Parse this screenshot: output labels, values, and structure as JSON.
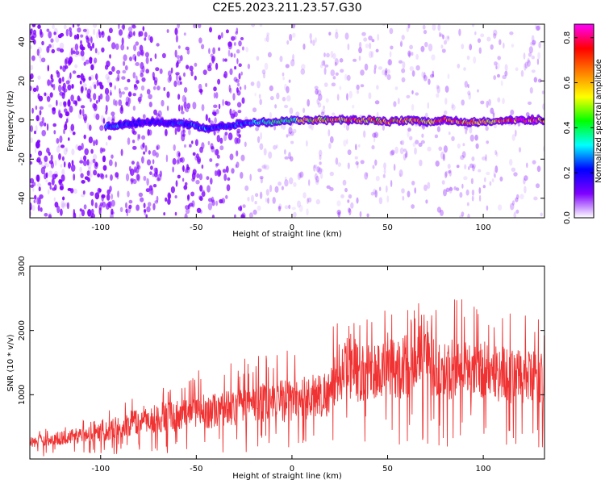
{
  "figure_title": "C2E5.2023.211.23.57.G30",
  "chart_data": [
    {
      "type": "heatmap",
      "title": "",
      "xlabel": "Height of straight line (km)",
      "ylabel": "Frequency (Hz)",
      "xlim": [
        -137,
        132
      ],
      "ylim": [
        -50,
        49
      ],
      "x_ticks": [
        -100,
        -50,
        0,
        50,
        100
      ],
      "y_ticks": [
        -40,
        -20,
        0,
        20,
        40
      ],
      "x_tick_labels": [
        "-100",
        "-50",
        "0",
        "50",
        "100"
      ],
      "y_tick_labels": [
        "-40",
        "-20",
        "0",
        "20",
        "40"
      ],
      "colorbar": {
        "label": "Normalized spectral amplitude",
        "range": [
          0.0,
          0.86
        ],
        "ticks": [
          0.0,
          0.2,
          0.4,
          0.6,
          0.8
        ],
        "tick_labels": [
          "0.0",
          "0.2",
          "0.4",
          "0.6",
          "0.8"
        ],
        "colormap": [
          "#ffffff",
          "#7f00ff",
          "#0000ff",
          "#00ffff",
          "#00ff00",
          "#ffff00",
          "#ff8000",
          "#ff0000",
          "#ff00ff"
        ]
      },
      "signal_track": {
        "frequency_hz": 0,
        "points": [
          {
            "x": -95,
            "y": -3,
            "amp": 0.28
          },
          {
            "x": -85,
            "y": -2,
            "amp": 0.22
          },
          {
            "x": -75,
            "y": -1,
            "amp": 0.18
          },
          {
            "x": -55,
            "y": -2,
            "amp": 0.25
          },
          {
            "x": -45,
            "y": -4,
            "amp": 0.28
          },
          {
            "x": -35,
            "y": -3,
            "amp": 0.2
          },
          {
            "x": -20,
            "y": -1,
            "amp": 0.3
          },
          {
            "x": -10,
            "y": -1,
            "amp": 0.4
          },
          {
            "x": 0,
            "y": 0,
            "amp": 0.45
          },
          {
            "x": 10,
            "y": 0,
            "amp": 0.55
          },
          {
            "x": 20,
            "y": 0,
            "amp": 0.62
          },
          {
            "x": 30,
            "y": 0,
            "amp": 0.7
          },
          {
            "x": 40,
            "y": 0,
            "amp": 0.66
          },
          {
            "x": 50,
            "y": -1,
            "amp": 0.6
          },
          {
            "x": 60,
            "y": 0,
            "amp": 0.7
          },
          {
            "x": 70,
            "y": -1,
            "amp": 0.65
          },
          {
            "x": 80,
            "y": 0,
            "amp": 0.7
          },
          {
            "x": 90,
            "y": -1,
            "amp": 0.66
          },
          {
            "x": 100,
            "y": -1,
            "amp": 0.6
          },
          {
            "x": 110,
            "y": 0,
            "amp": 0.7
          },
          {
            "x": 120,
            "y": 0,
            "amp": 0.8
          },
          {
            "x": 130,
            "y": 0,
            "amp": 0.75
          }
        ]
      },
      "background_noise": "dense speckle for x < -25 km, sparse for x > -25 km"
    },
    {
      "type": "area",
      "title": "",
      "xlabel": "Height of straight line (km)",
      "ylabel": "SNR (10 * v/v)",
      "xlim": [
        -137,
        132
      ],
      "ylim": [
        0,
        3000
      ],
      "x_ticks": [
        -100,
        -50,
        0,
        50,
        100
      ],
      "y_ticks": [
        1000,
        2000,
        3000
      ],
      "x_tick_labels": [
        "-100",
        "-50",
        "0",
        "50",
        "100"
      ],
      "y_tick_labels": [
        "1000",
        "2000",
        "3000"
      ],
      "series": [
        {
          "color": "#f03232",
          "envelope": {
            "x": [
              -137,
              -120,
              -100,
              -90,
              -75,
              -50,
              -25,
              -10,
              0,
              10,
              20,
              25,
              35,
              50,
              65,
              70,
              75,
              90,
              100,
              110,
              120,
              132
            ],
            "upper": [
              500,
              560,
              700,
              950,
              1000,
              1350,
              1550,
              1650,
              1800,
              1850,
              2000,
              2100,
              2200,
              2300,
              2400,
              2700,
              2300,
              2600,
              2500,
              2400,
              2200,
              2100
            ],
            "typical": [
              250,
              320,
              400,
              500,
              600,
              700,
              800,
              850,
              900,
              950,
              1000,
              1350,
              1300,
              1350,
              1450,
              1700,
              1300,
              1400,
              1350,
              1300,
              1250,
              1200
            ],
            "lower": [
              120,
              150,
              180,
              220,
              250,
              300,
              330,
              350,
              380,
              400,
              420,
              650,
              600,
              620,
              650,
              800,
              620,
              650,
              620,
              600,
              580,
              560
            ]
          }
        }
      ]
    }
  ]
}
